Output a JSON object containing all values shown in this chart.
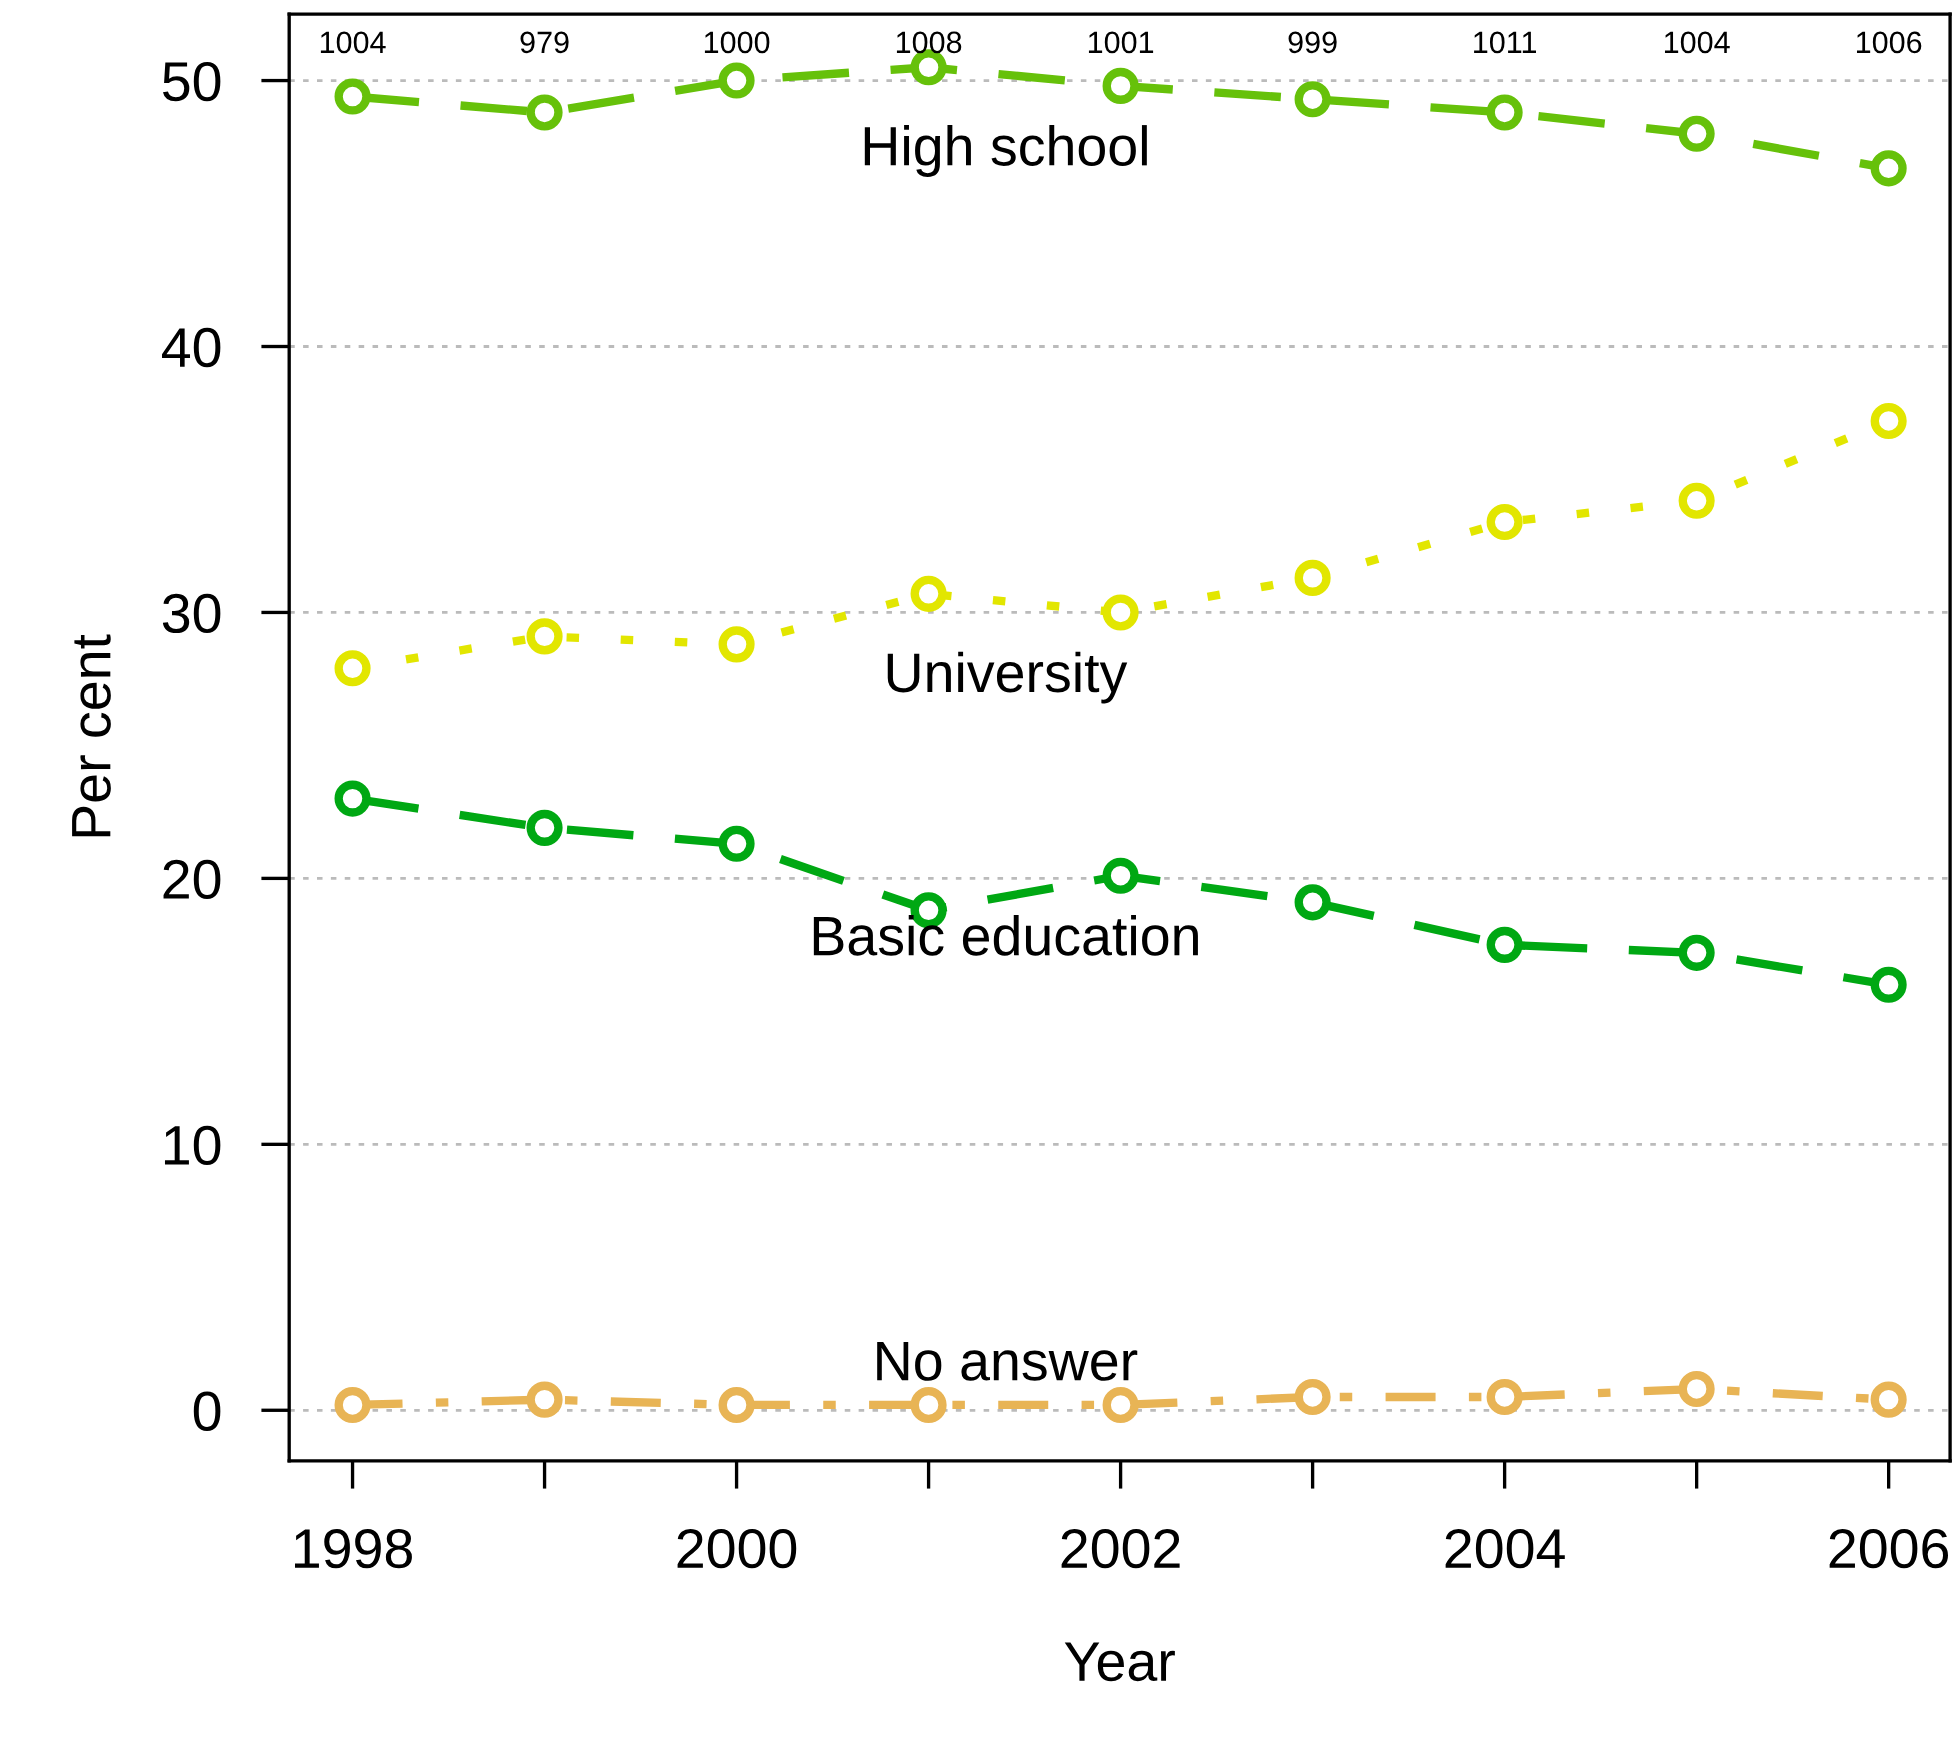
{
  "chart_data": {
    "type": "line",
    "xlabel": "Year",
    "ylabel": "Per cent",
    "x": [
      1998,
      1999,
      2000,
      2001,
      2002,
      2003,
      2004,
      2005,
      2006
    ],
    "series": [
      {
        "name": "High school",
        "color": "#66c10a",
        "line_style": "dashed",
        "values": [
          49.4,
          48.8,
          50.0,
          50.5,
          49.8,
          49.3,
          48.8,
          48.0,
          46.7
        ]
      },
      {
        "name": "University",
        "color": "#e2e600",
        "line_style": "dotted",
        "values": [
          27.9,
          29.1,
          28.8,
          30.7,
          30.0,
          31.3,
          33.4,
          34.2,
          37.2
        ]
      },
      {
        "name": "Basic education",
        "color": "#00a813",
        "line_style": "dashed",
        "values": [
          23.0,
          21.9,
          21.3,
          18.8,
          20.1,
          19.1,
          17.5,
          17.2,
          16.0
        ]
      },
      {
        "name": "No answer",
        "color": "#e8b455",
        "line_style": "dashdot",
        "values": [
          0.2,
          0.4,
          0.2,
          0.2,
          0.2,
          0.5,
          0.5,
          0.8,
          0.4
        ]
      }
    ],
    "annotations": [
      "1004",
      "979",
      "1000",
      "1008",
      "1001",
      "999",
      "1011",
      "1004",
      "1006"
    ],
    "xlim": [
      1997.67,
      2006.32
    ],
    "xticks": [
      1998,
      {
        "value": 1999,
        "label": null
      },
      2000,
      {
        "value": 2001,
        "label": null
      },
      2002,
      {
        "value": 2003,
        "label": null
      },
      2004,
      {
        "value": 2005,
        "label": null
      },
      2006
    ],
    "ylim": [
      -1.9,
      52.5
    ],
    "yticks": [
      0,
      10,
      20,
      30,
      40,
      50
    ],
    "grid": "y",
    "marker": "circle",
    "legend": false
  }
}
